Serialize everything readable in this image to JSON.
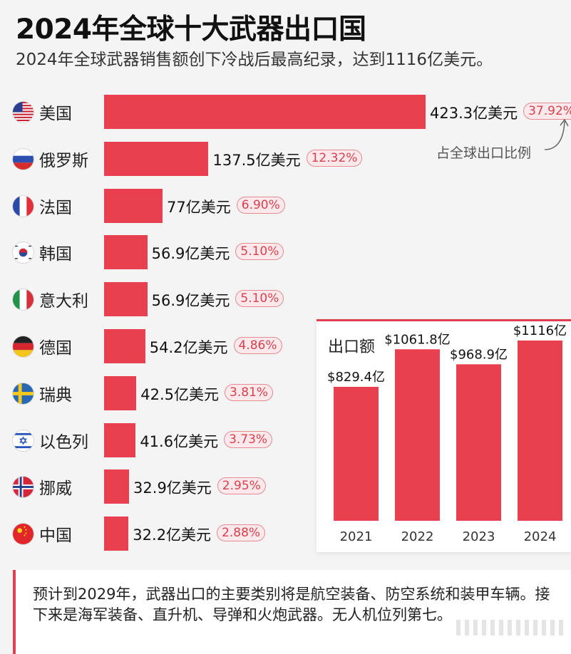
{
  "title": "2024年全球十大武器出口国",
  "subtitle": "2024年全球武器销售额创下冷战后最高纪录，达到1116亿美元。",
  "pct_label": "占全球出口比例",
  "note": "预计到2029年，武器出口的主要类别将是航空装备、防空系统和装甲车辆。接下来是海军装备、直升机、导弹和火炮武器。无人机位列第七。",
  "colors": {
    "bar": "#e8404f",
    "accent": "#e04050",
    "pct_text": "#d9404c"
  },
  "chart_data": [
    {
      "type": "bar",
      "orientation": "horizontal",
      "title": "2024年全球十大武器出口国",
      "categories": [
        "美国",
        "俄罗斯",
        "法国",
        "韩国",
        "意大利",
        "德国",
        "瑞典",
        "以色列",
        "挪威",
        "中国"
      ],
      "values": [
        423.3,
        137.5,
        77,
        56.9,
        56.9,
        54.2,
        42.5,
        41.6,
        32.9,
        32.2
      ],
      "value_labels": [
        "423.3亿美元",
        "137.5亿美元",
        "77亿美元",
        "56.9亿美元",
        "56.9亿美元",
        "54.2亿美元",
        "42.5亿美元",
        "41.6亿美元",
        "32.9亿美元",
        "32.2亿美元"
      ],
      "shares": [
        "37.92%",
        "12.32%",
        "6.90%",
        "5.10%",
        "5.10%",
        "4.86%",
        "3.81%",
        "3.73%",
        "2.95%",
        "2.88%"
      ],
      "flags": [
        "us-flag-icon",
        "russia-flag-icon",
        "france-flag-icon",
        "korea-flag-icon",
        "italy-flag-icon",
        "germany-flag-icon",
        "sweden-flag-icon",
        "israel-flag-icon",
        "norway-flag-icon",
        "china-flag-icon"
      ],
      "xlim": [
        0,
        423.3
      ]
    },
    {
      "type": "bar",
      "title": "出口额",
      "categories": [
        "2021",
        "2022",
        "2023",
        "2024"
      ],
      "values": [
        829.4,
        1061.8,
        968.9,
        1116
      ],
      "value_labels": [
        "$829.4亿",
        "$1061.8亿",
        "$968.9亿",
        "$1116亿"
      ],
      "ylim": [
        0,
        1116
      ]
    }
  ]
}
